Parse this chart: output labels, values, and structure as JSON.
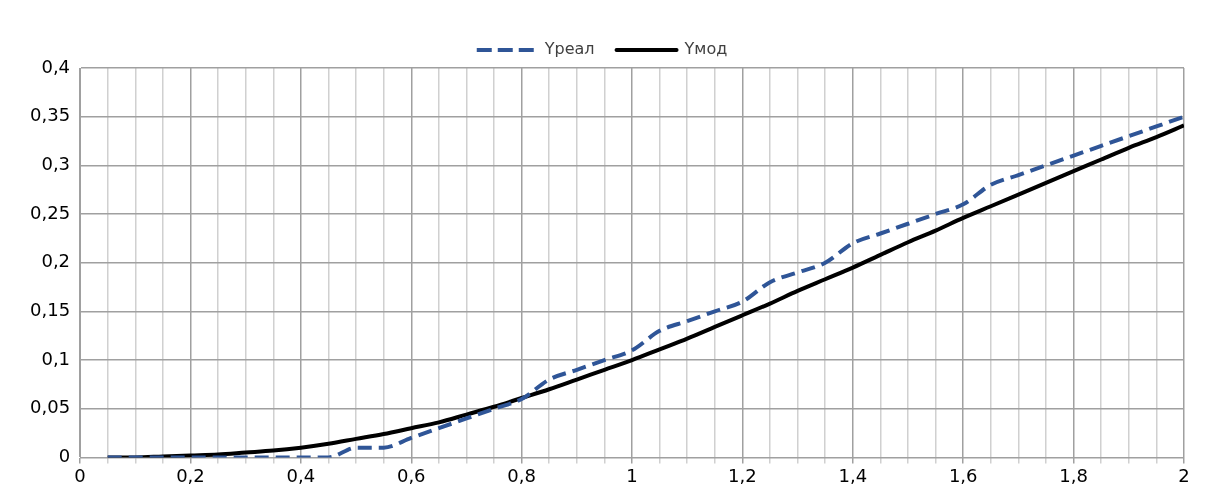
{
  "chart_data": {
    "type": "line",
    "x": [
      0.05,
      0.1,
      0.15,
      0.2,
      0.25,
      0.3,
      0.35,
      0.4,
      0.45,
      0.5,
      0.55,
      0.6,
      0.65,
      0.7,
      0.75,
      0.8,
      0.85,
      0.9,
      0.95,
      1,
      1.05,
      1.1,
      1.15,
      1.2,
      1.25,
      1.3,
      1.35,
      1.4,
      1.45,
      1.5,
      1.55,
      1.6,
      1.65,
      1.7,
      1.75,
      1.8,
      1.85,
      1.9,
      1.95,
      2
    ],
    "series": [
      {
        "name": "Yреал",
        "color": "#2f5597",
        "line_style": "dashed",
        "values": [
          0,
          0,
          0,
          0,
          0,
          0,
          0,
          0,
          0,
          0.01,
          0.01,
          0.02,
          0.03,
          0.04,
          0.05,
          0.06,
          0.08,
          0.09,
          0.1,
          0.11,
          0.13,
          0.14,
          0.15,
          0.16,
          0.18,
          0.19,
          0.2,
          0.22,
          0.23,
          0.24,
          0.25,
          0.26,
          0.28,
          0.29,
          0.3,
          0.31,
          0.32,
          0.33,
          0.34,
          0.35
        ]
      },
      {
        "name": "Yмод",
        "color": "#000000",
        "line_style": "solid",
        "values": [
          0,
          0,
          0.001,
          0.002,
          0.003,
          0.005,
          0.007,
          0.01,
          0.014,
          0.019,
          0.024,
          0.03,
          0.036,
          0.044,
          0.052,
          0.061,
          0.07,
          0.08,
          0.09,
          0.1,
          0.111,
          0.122,
          0.134,
          0.146,
          0.158,
          0.171,
          0.183,
          0.195,
          0.208,
          0.221,
          0.233,
          0.246,
          0.258,
          0.27,
          0.282,
          0.294,
          0.306,
          0.318,
          0.329,
          0.341
        ]
      }
    ],
    "xlim": [
      0,
      2
    ],
    "xticks": [
      0,
      {
        "value": 0.05,
        "label": null
      },
      {
        "value": 0.1,
        "label": null
      },
      {
        "value": 0.15,
        "label": null
      },
      {
        "value": 0.2,
        "label": "0,2"
      },
      {
        "value": 0.25,
        "label": null
      },
      {
        "value": 0.3,
        "label": null
      },
      {
        "value": 0.35,
        "label": null
      },
      {
        "value": 0.4,
        "label": "0,4"
      },
      {
        "value": 0.45,
        "label": null
      },
      {
        "value": 0.5,
        "label": null
      },
      {
        "value": 0.55,
        "label": null
      },
      {
        "value": 0.6,
        "label": "0,6"
      },
      {
        "value": 0.65,
        "label": null
      },
      {
        "value": 0.7,
        "label": null
      },
      {
        "value": 0.75,
        "label": null
      },
      {
        "value": 0.8,
        "label": "0,8"
      },
      {
        "value": 0.85,
        "label": null
      },
      {
        "value": 0.9,
        "label": null
      },
      {
        "value": 0.95,
        "label": null
      },
      1,
      {
        "value": 1.05,
        "label": null
      },
      {
        "value": 1.1,
        "label": null
      },
      {
        "value": 1.15,
        "label": null
      },
      {
        "value": 1.2,
        "label": "1,2"
      },
      {
        "value": 1.25,
        "label": null
      },
      {
        "value": 1.3,
        "label": null
      },
      {
        "value": 1.35,
        "label": null
      },
      {
        "value": 1.4,
        "label": "1,4"
      },
      {
        "value": 1.45,
        "label": null
      },
      {
        "value": 1.5,
        "label": null
      },
      {
        "value": 1.55,
        "label": null
      },
      {
        "value": 1.6,
        "label": "1,6"
      },
      {
        "value": 1.65,
        "label": null
      },
      {
        "value": 1.7,
        "label": null
      },
      {
        "value": 1.75,
        "label": null
      },
      {
        "value": 1.8,
        "label": "1,8"
      },
      {
        "value": 1.85,
        "label": null
      },
      {
        "value": 1.9,
        "label": null
      },
      {
        "value": 1.95,
        "label": null
      },
      2
    ],
    "ylim": [
      0,
      0.4
    ],
    "yticks": [
      0,
      {
        "value": 0.05,
        "label": "0,05"
      },
      {
        "value": 0.1,
        "label": "0,1"
      },
      {
        "value": 0.15,
        "label": "0,15"
      },
      {
        "value": 0.2,
        "label": "0,2"
      },
      {
        "value": 0.25,
        "label": "0,25"
      },
      {
        "value": 0.3,
        "label": "0,3"
      },
      {
        "value": 0.35,
        "label": "0,35"
      },
      {
        "value": 0.4,
        "label": "0,4"
      }
    ],
    "grid": true,
    "legend": "top",
    "marker": "none"
  }
}
